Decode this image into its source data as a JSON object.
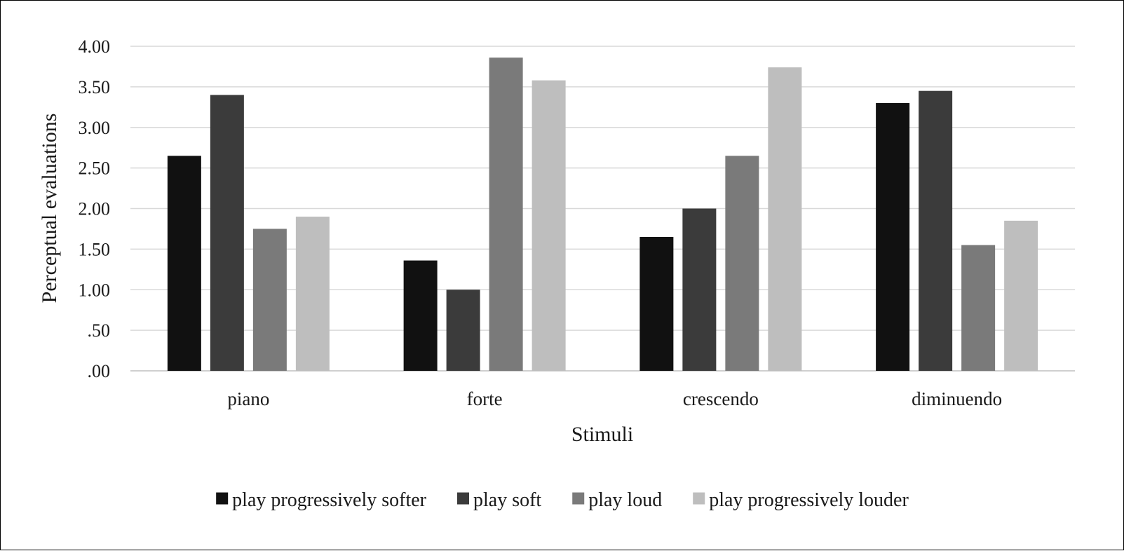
{
  "chart_data": {
    "type": "bar",
    "xlabel": "Stimuli",
    "ylabel": "Perceptual evaluations",
    "ylim": [
      0,
      4
    ],
    "ytick_step": 0.5,
    "ytick_labels": [
      ".00",
      ".50",
      "1.00",
      "1.50",
      "2.00",
      "2.50",
      "3.00",
      "3.50",
      "4.00"
    ],
    "grid": true,
    "legend_position": "bottom",
    "categories": [
      "piano",
      "forte",
      "crescendo",
      "diminuendo"
    ],
    "series": [
      {
        "name": "play progressively softer",
        "color": "#111111",
        "values": [
          2.65,
          1.36,
          1.65,
          3.3
        ]
      },
      {
        "name": "play soft",
        "color": "#3b3b3b",
        "values": [
          3.4,
          1.0,
          2.0,
          3.45
        ]
      },
      {
        "name": "play loud",
        "color": "#7a7a7a",
        "values": [
          1.75,
          3.86,
          2.65,
          1.55
        ]
      },
      {
        "name": "play progressively louder",
        "color": "#bebebe",
        "values": [
          1.9,
          3.58,
          3.74,
          1.85
        ]
      }
    ]
  }
}
